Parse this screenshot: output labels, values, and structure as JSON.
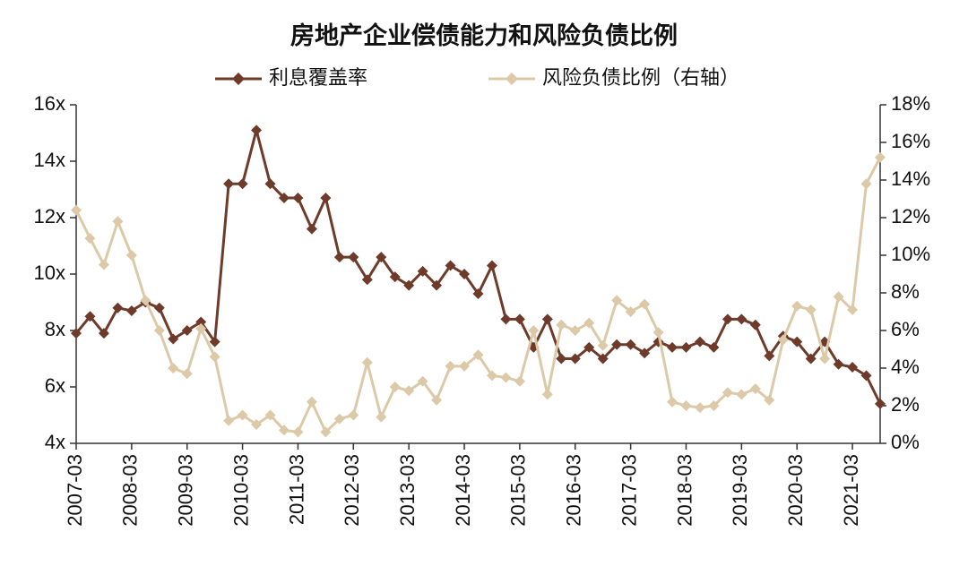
{
  "chart_data": {
    "type": "line",
    "title": "房地产企业偿债能力和风险负债比例",
    "categories": [
      "2007-03",
      null,
      null,
      null,
      "2008-03",
      null,
      null,
      null,
      "2009-03",
      null,
      null,
      null,
      "2010-03",
      null,
      null,
      null,
      "2011-03",
      null,
      null,
      null,
      "2012-03",
      null,
      null,
      null,
      "2013-03",
      null,
      null,
      null,
      "2014-03",
      null,
      null,
      null,
      "2015-03",
      null,
      null,
      null,
      "2016-03",
      null,
      null,
      null,
      "2017-03",
      null,
      null,
      null,
      "2018-03",
      null,
      null,
      null,
      "2019-03",
      null,
      null,
      null,
      "2020-03",
      null,
      null,
      null,
      "2021-03",
      null,
      null
    ],
    "series": [
      {
        "name": "利息覆盖率",
        "color": "#6e3b2a",
        "values": [
          7.9,
          8.5,
          7.9,
          8.8,
          8.7,
          9.0,
          8.8,
          7.7,
          8.0,
          8.3,
          7.6,
          13.2,
          13.2,
          15.1,
          13.2,
          12.7,
          12.7,
          11.6,
          12.7,
          10.6,
          10.6,
          9.8,
          10.6,
          9.9,
          9.6,
          10.1,
          9.6,
          10.3,
          10.0,
          9.3,
          10.3,
          8.4,
          8.4,
          7.4,
          8.4,
          7.0,
          7.0,
          7.4,
          7.0,
          7.5,
          7.5,
          7.2,
          7.6,
          7.4,
          7.4,
          7.6,
          7.4,
          8.4,
          8.4,
          8.2,
          7.1,
          7.8,
          7.6,
          7.0,
          7.6,
          6.8,
          6.7,
          6.4,
          5.4
        ]
      },
      {
        "name": "风险负债比例（右轴）",
        "color": "#dcc9a8",
        "axis": "y2",
        "values": [
          12.4,
          10.9,
          9.5,
          11.8,
          10.0,
          7.6,
          6.0,
          4.0,
          3.7,
          6.1,
          4.6,
          1.2,
          1.5,
          1.0,
          1.5,
          0.7,
          0.6,
          2.2,
          0.6,
          1.3,
          1.5,
          4.3,
          1.4,
          3.0,
          2.8,
          3.3,
          2.3,
          4.1,
          4.1,
          4.7,
          3.6,
          3.5,
          3.3,
          6.0,
          2.6,
          6.3,
          6.0,
          6.4,
          5.2,
          7.6,
          7.0,
          7.4,
          5.9,
          2.2,
          2.0,
          1.9,
          2.0,
          2.7,
          2.6,
          2.9,
          2.3,
          5.5,
          7.3,
          7.1,
          4.5,
          7.8,
          7.1,
          13.8,
          15.2
        ]
      }
    ],
    "ylim": [
      4,
      16
    ],
    "yticks": [
      {
        "value": 4,
        "label": "4x"
      },
      {
        "value": 6,
        "label": "6x"
      },
      {
        "value": 8,
        "label": "8x"
      },
      {
        "value": 10,
        "label": "10x"
      },
      {
        "value": 12,
        "label": "12x"
      },
      {
        "value": 14,
        "label": "14x"
      },
      {
        "value": 16,
        "label": "16x"
      }
    ],
    "y2lim": [
      0,
      18
    ],
    "y2ticks": [
      {
        "value": 0,
        "label": "0%"
      },
      {
        "value": 2,
        "label": "2%"
      },
      {
        "value": 4,
        "label": "4%"
      },
      {
        "value": 6,
        "label": "6%"
      },
      {
        "value": 8,
        "label": "8%"
      },
      {
        "value": 10,
        "label": "10%"
      },
      {
        "value": 12,
        "label": "12%"
      },
      {
        "value": 14,
        "label": "14%"
      },
      {
        "value": 16,
        "label": "16%"
      },
      {
        "value": 18,
        "label": "18%"
      }
    ],
    "legend": "top"
  }
}
